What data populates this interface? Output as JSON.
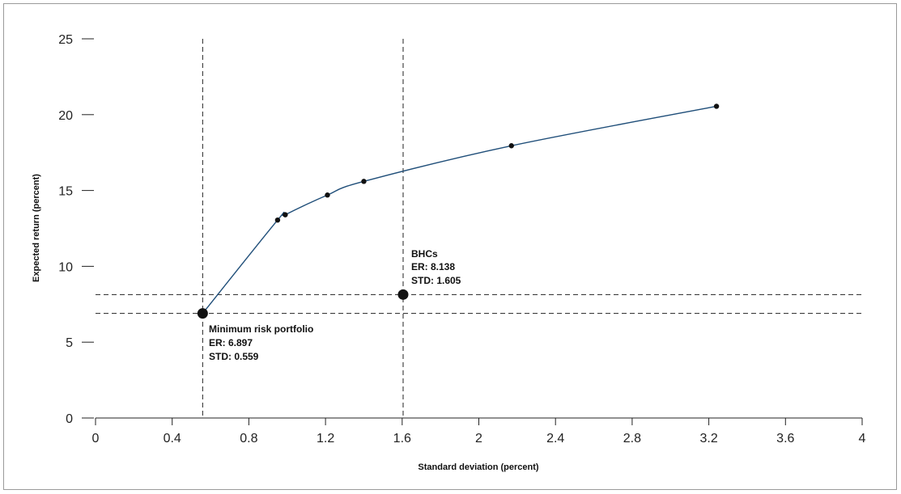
{
  "chart_data": {
    "type": "line",
    "xlabel": "Standard deviation (percent)",
    "ylabel": "Expected return (percent)",
    "xlim": [
      0,
      4
    ],
    "ylim": [
      0,
      25
    ],
    "x_ticks": [
      0,
      0.4,
      0.8,
      1.2,
      1.6,
      2,
      2.4,
      2.8,
      3.2,
      3.6,
      4
    ],
    "x_tick_labels": [
      "0",
      "0.4",
      "0.8",
      "1.2",
      "1.6",
      "2",
      "2.4",
      "2.8",
      "3.2",
      "3.6",
      "4"
    ],
    "y_ticks": [
      0,
      5,
      10,
      15,
      20,
      25
    ],
    "y_tick_labels": [
      "0",
      "5",
      "10",
      "15",
      "20",
      "25"
    ],
    "frontier_color": "#1f4e79",
    "frontier_points": [
      {
        "x": 0.559,
        "y": 6.897
      },
      {
        "x": 0.95,
        "y": 13.05
      },
      {
        "x": 0.99,
        "y": 13.4
      },
      {
        "x": 1.21,
        "y": 14.7
      },
      {
        "x": 1.4,
        "y": 15.6
      },
      {
        "x": 2.17,
        "y": 17.95
      },
      {
        "x": 3.24,
        "y": 20.55
      }
    ],
    "highlighted_points": [
      {
        "x": 0.559,
        "y": 6.897,
        "label": "Minimum risk portfolio",
        "er_label": "ER: 6.897",
        "std_label": "STD: 0.559"
      },
      {
        "x": 1.605,
        "y": 8.138,
        "label": "BHCs",
        "er_label": "ER: 8.138",
        "std_label": "STD: 1.605"
      }
    ],
    "reference_lines": {
      "vertical": [
        0.559,
        1.605
      ],
      "horizontal": [
        6.897,
        8.138
      ]
    },
    "grid": false,
    "legend": "none"
  }
}
